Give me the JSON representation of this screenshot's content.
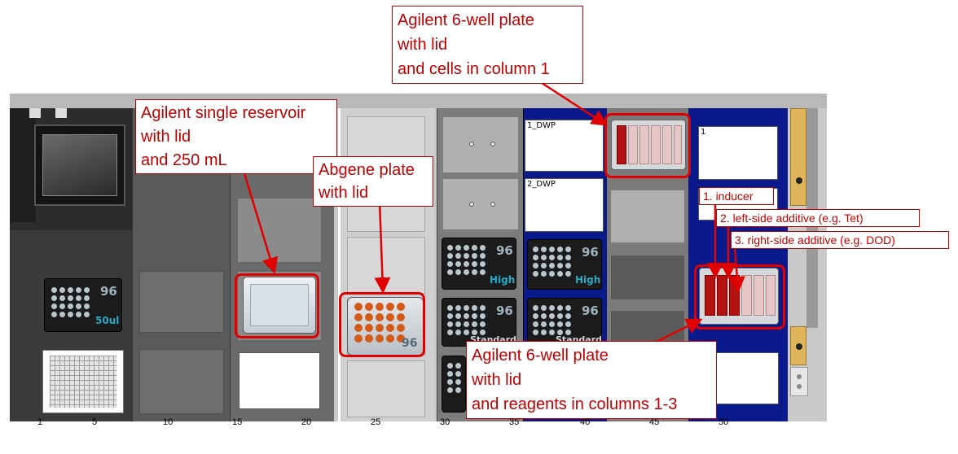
{
  "deck": {
    "axis_labels": [
      "1",
      "5",
      "10",
      "15",
      "20",
      "25",
      "30",
      "35",
      "40",
      "45",
      "50"
    ]
  },
  "tips": {
    "tip50": {
      "count": "96",
      "type": "50ul"
    },
    "high1": {
      "count": "96",
      "type": "High"
    },
    "high2": {
      "count": "96",
      "type": "High"
    },
    "std1": {
      "count": "96",
      "type": "Standard"
    },
    "std2": {
      "count": "96",
      "type": "Standard"
    },
    "abgene_count": "96"
  },
  "positions": {
    "dwp1": "1_DWP",
    "dwp2": "2_DWP",
    "pos1": "1"
  },
  "callouts": {
    "reservoir": [
      "Agilent single reservoir",
      "with lid",
      "and 250 mL"
    ],
    "abgene": [
      "Abgene plate",
      "with lid"
    ],
    "cells": [
      "Agilent 6-well plate",
      "with lid",
      "and cells in column 1"
    ],
    "reagents": [
      "Agilent 6-well plate",
      "with lid",
      "and reagents in columns 1-3"
    ],
    "inducer": "1. inducer",
    "left_additive": "2. left-side additive (e.g. Tet)",
    "right_additive": "3. right-side additive (e.g. DOD)"
  },
  "colors": {
    "accent_red": "#e00000",
    "deck_blue": "#0a1a8c",
    "well_fill": "#b31212"
  }
}
